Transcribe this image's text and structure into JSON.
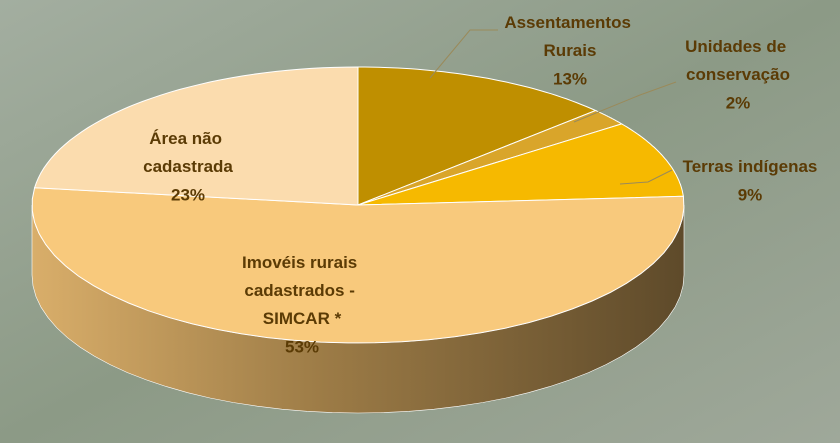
{
  "chart_data": {
    "type": "pie3d",
    "categories": [
      "Assentamentos Rurais",
      "Unidades de conservação",
      "Terras indígenas",
      "Imovéis rurais cadastrados - SIMCAR *",
      "Área não cadastrada"
    ],
    "values": [
      13,
      2,
      9,
      53,
      23
    ],
    "value_labels": [
      "13%",
      "2%",
      "9%",
      "53%",
      "23%"
    ],
    "colors": [
      "#bf8f00",
      "#d9a52a",
      "#f6b900",
      "#f8c97c",
      "#fbdcae"
    ]
  }
}
